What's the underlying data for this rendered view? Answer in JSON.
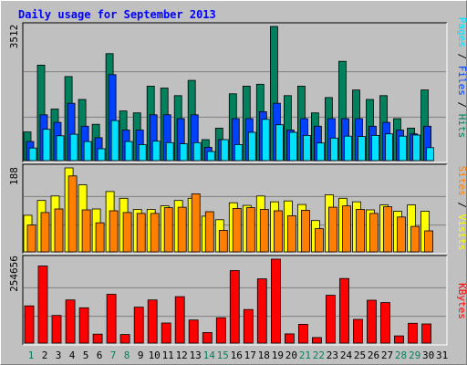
{
  "chart_data": [
    {
      "type": "bar",
      "panel": "hits-files-pages",
      "title": "Daily usage for September 2013",
      "max_label": "3512",
      "ylim": [
        0,
        3512
      ],
      "categories": [
        "1",
        "2",
        "3",
        "4",
        "5",
        "6",
        "7",
        "8",
        "9",
        "10",
        "11",
        "12",
        "13",
        "14",
        "15",
        "16",
        "17",
        "18",
        "19",
        "20",
        "21",
        "22",
        "23",
        "24",
        "25",
        "26",
        "27",
        "28",
        "29",
        "30",
        "31"
      ],
      "series": [
        {
          "name": "Hits",
          "color": "#00805c",
          "values": [
            750,
            2500,
            1350,
            2200,
            1600,
            950,
            2800,
            1300,
            1250,
            1950,
            1900,
            1700,
            2100,
            550,
            850,
            1750,
            1950,
            2000,
            3512,
            1700,
            1950,
            1250,
            1650,
            2600,
            1850,
            1600,
            1700,
            1100,
            850,
            1850,
            0
          ]
        },
        {
          "name": "Files",
          "color": "#0040ff",
          "values": [
            500,
            1200,
            1000,
            1500,
            900,
            600,
            2250,
            800,
            800,
            1200,
            1200,
            1100,
            1200,
            350,
            550,
            1100,
            1100,
            1280,
            1500,
            800,
            1100,
            900,
            1100,
            1100,
            1100,
            900,
            1000,
            800,
            700,
            900,
            0
          ]
        },
        {
          "name": "Pages",
          "color": "#00e0ff",
          "values": [
            330,
            820,
            650,
            690,
            500,
            310,
            1050,
            500,
            420,
            510,
            470,
            440,
            470,
            240,
            550,
            420,
            740,
            1080,
            940,
            740,
            660,
            460,
            590,
            640,
            630,
            660,
            700,
            640,
            670,
            340,
            0
          ]
        }
      ],
      "right_label": {
        "parts": [
          {
            "text": "Pages",
            "color": "#00e0ff"
          },
          {
            "text": " / ",
            "color": "#000000"
          },
          {
            "text": "Files",
            "color": "#0040ff"
          },
          {
            "text": " / ",
            "color": "#000000"
          },
          {
            "text": "Hits",
            "color": "#00805c"
          }
        ]
      }
    },
    {
      "type": "bar",
      "panel": "sites-visits",
      "max_label": "188",
      "ylim": [
        0,
        188
      ],
      "categories": [
        "1",
        "2",
        "3",
        "4",
        "5",
        "6",
        "7",
        "8",
        "9",
        "10",
        "11",
        "12",
        "13",
        "14",
        "15",
        "16",
        "17",
        "18",
        "19",
        "20",
        "21",
        "22",
        "23",
        "24",
        "25",
        "26",
        "27",
        "28",
        "29",
        "30",
        "31"
      ],
      "series": [
        {
          "name": "Visits",
          "color": "#ffff00",
          "values": [
            82,
            115,
            125,
            188,
            150,
            96,
            135,
            120,
            95,
            95,
            103,
            115,
            120,
            80,
            72,
            110,
            104,
            125,
            112,
            114,
            106,
            70,
            128,
            120,
            112,
            94,
            105,
            91,
            105,
            91,
            0
          ]
        },
        {
          "name": "Sites",
          "color": "#ff8000",
          "values": [
            60,
            88,
            96,
            170,
            94,
            65,
            92,
            88,
            86,
            86,
            99,
            100,
            130,
            90,
            48,
            97,
            99,
            95,
            92,
            81,
            93,
            52,
            100,
            103,
            95,
            86,
            101,
            78,
            57,
            47,
            0
          ]
        }
      ],
      "right_label": {
        "parts": [
          {
            "text": "Sites",
            "color": "#ff8000"
          },
          {
            "text": " / ",
            "color": "#000000"
          },
          {
            "text": "Visits",
            "color": "#ffff00"
          }
        ]
      }
    },
    {
      "type": "bar",
      "panel": "kbytes",
      "max_label": "254656",
      "ylim": [
        0,
        254656
      ],
      "categories": [
        "1",
        "2",
        "3",
        "4",
        "5",
        "6",
        "7",
        "8",
        "9",
        "10",
        "11",
        "12",
        "13",
        "14",
        "15",
        "16",
        "17",
        "18",
        "19",
        "20",
        "21",
        "22",
        "23",
        "24",
        "25",
        "26",
        "27",
        "28",
        "29",
        "30",
        "31"
      ],
      "series": [
        {
          "name": "KBytes",
          "color": "#ff0000",
          "values": [
            113000,
            234000,
            84000,
            131000,
            107000,
            27000,
            148000,
            26000,
            109000,
            131000,
            61000,
            141000,
            70000,
            32000,
            77000,
            220000,
            102000,
            195000,
            254656,
            28000,
            57000,
            17000,
            145000,
            196000,
            72000,
            130000,
            123000,
            22000,
            60000,
            58000,
            0
          ]
        }
      ],
      "right_label": {
        "parts": [
          {
            "text": "KBytes",
            "color": "#ff0000"
          }
        ]
      }
    }
  ],
  "x_axis": {
    "labels": [
      "1",
      "2",
      "3",
      "4",
      "5",
      "6",
      "7",
      "8",
      "9",
      "10",
      "11",
      "12",
      "13",
      "14",
      "15",
      "16",
      "17",
      "18",
      "19",
      "20",
      "21",
      "22",
      "23",
      "24",
      "25",
      "26",
      "27",
      "28",
      "29",
      "30",
      "31"
    ],
    "weekend_days": [
      1,
      7,
      8,
      14,
      15,
      21,
      22,
      28,
      29
    ],
    "weekend_color": "#00805c",
    "weekday_color": "#000000"
  },
  "colors": {
    "title": "#0000ff",
    "plot_bg": "#c0c0c0"
  }
}
